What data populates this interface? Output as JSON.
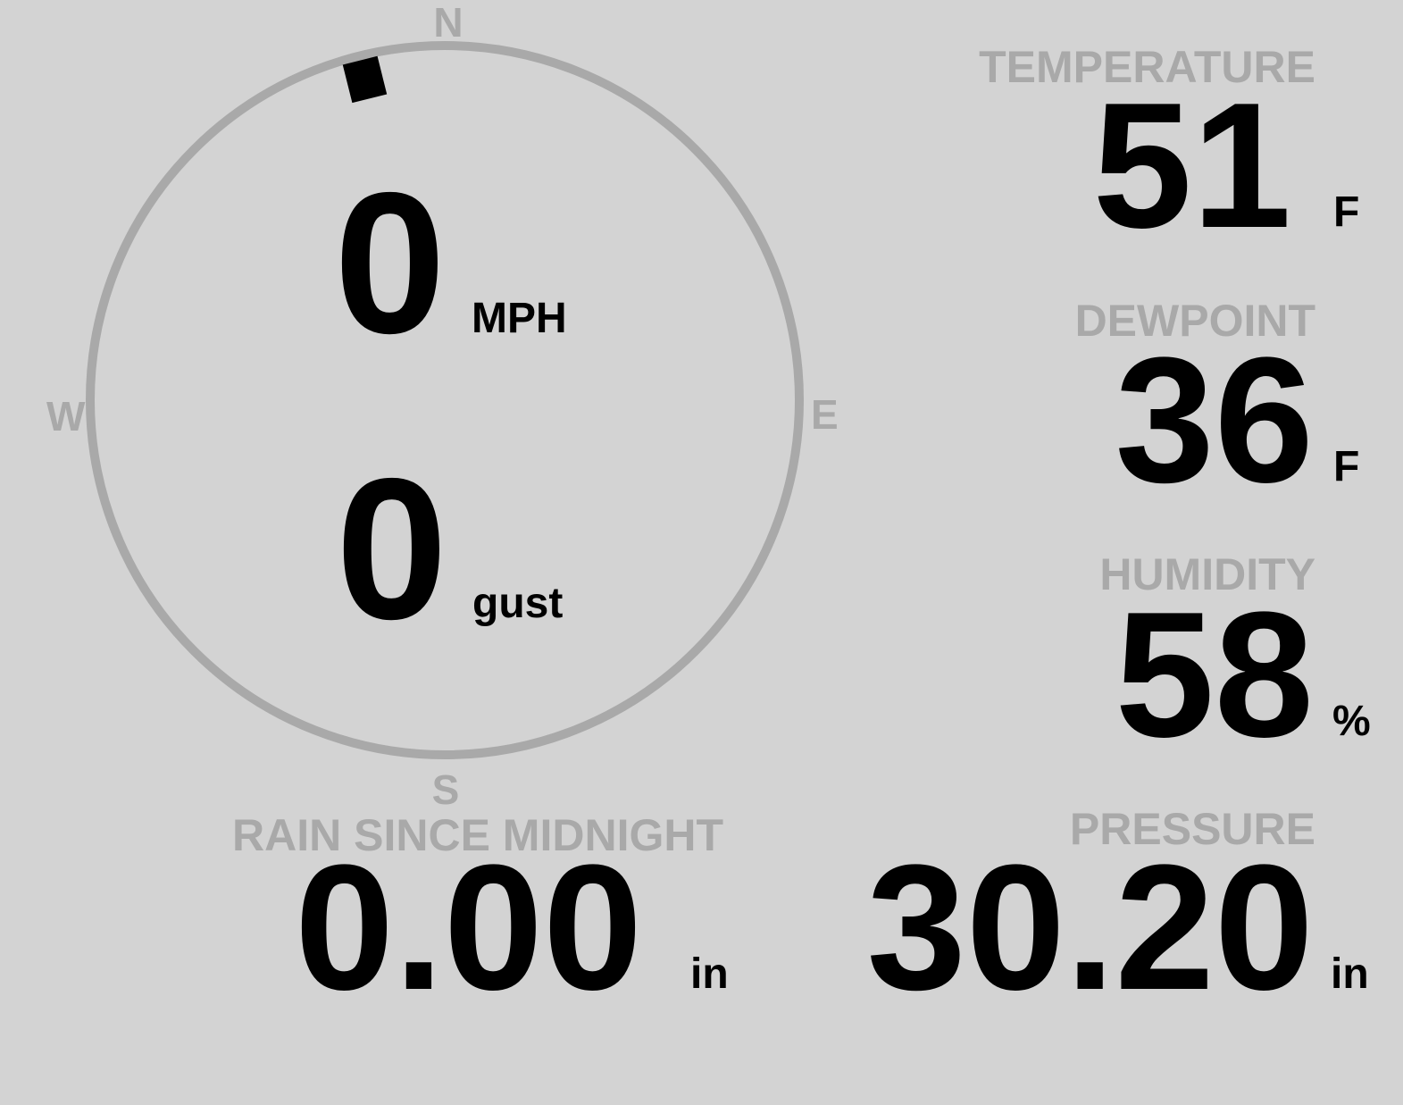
{
  "colors": {
    "background": "#d3d3d3",
    "label": "#a9a9a9",
    "value": "#000000",
    "compass_ring": "#a9a9a9"
  },
  "wind": {
    "compass": {
      "n": "N",
      "e": "E",
      "s": "S",
      "w": "W"
    },
    "direction_deg": 346,
    "speed": "0",
    "speed_unit": "MPH",
    "gust": "0",
    "gust_unit": "gust"
  },
  "temperature": {
    "label": "TEMPERATURE",
    "value": "51",
    "unit": "F"
  },
  "dewpoint": {
    "label": "DEWPOINT",
    "value": "36",
    "unit": "F"
  },
  "humidity": {
    "label": "HUMIDITY",
    "value": "58",
    "unit": "%"
  },
  "pressure": {
    "label": "PRESSURE",
    "value": "30.20",
    "unit": "in"
  },
  "rain": {
    "label": "RAIN SINCE MIDNIGHT",
    "value": "0.00",
    "unit": "in"
  }
}
